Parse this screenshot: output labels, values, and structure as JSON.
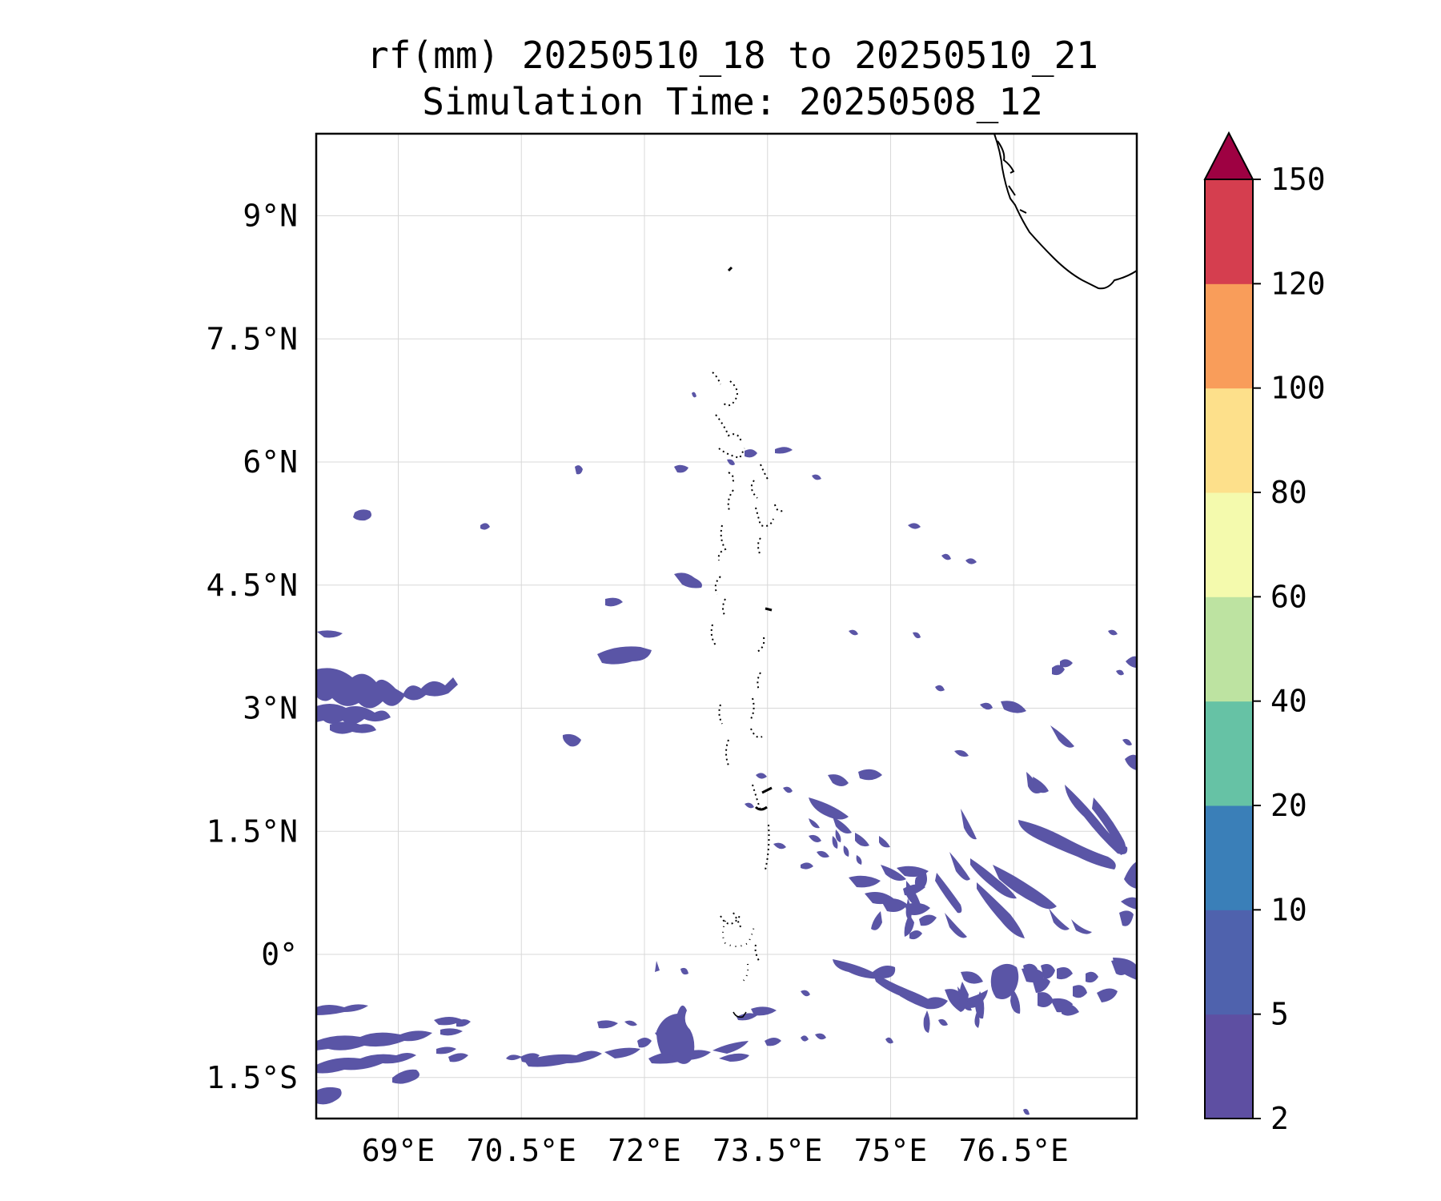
{
  "title": {
    "line1": "rf(mm) 20250510_18 to 20250510_21",
    "line2": "Simulation Time: 20250508_12"
  },
  "chart_data": {
    "type": "heatmap",
    "map_extent": {
      "lon": [
        68.0,
        78.0
      ],
      "lat": [
        -2.0,
        10.0
      ]
    },
    "x_ticks": [
      {
        "value": 69.0,
        "label": "69°E"
      },
      {
        "value": 70.5,
        "label": "70.5°E"
      },
      {
        "value": 72.0,
        "label": "72°E"
      },
      {
        "value": 73.5,
        "label": "73.5°E"
      },
      {
        "value": 75.0,
        "label": "75°E"
      },
      {
        "value": 76.5,
        "label": "76.5°E"
      }
    ],
    "y_ticks": [
      {
        "value": 9.0,
        "label": "9°N"
      },
      {
        "value": 7.5,
        "label": "7.5°N"
      },
      {
        "value": 6.0,
        "label": "6°N"
      },
      {
        "value": 4.5,
        "label": "4.5°N"
      },
      {
        "value": 3.0,
        "label": "3°N"
      },
      {
        "value": 1.5,
        "label": "1.5°N"
      },
      {
        "value": 0.0,
        "label": "0°"
      },
      {
        "value": -1.5,
        "label": "1.5°S"
      }
    ],
    "grid": true,
    "colorbar": {
      "levels": [
        "2",
        "5",
        "10",
        "20",
        "40",
        "60",
        "80",
        "100",
        "120",
        "150"
      ],
      "colors": [
        "#5e4fa2",
        "#4f62ad",
        "#3a7fb8",
        "#66c2a5",
        "#bde3a1",
        "#f4faad",
        "#fde08b",
        "#f99d5a",
        "#d53e4f"
      ],
      "extend_color": "#9e0142",
      "extend": "max"
    },
    "rain_color": "#5a55a6",
    "rain_regions": [
      "Southeast Indian Ocean near 74–78°E, 0.5°S–2.5°N: widespread streaks",
      "Western edge near 68–69.5°E, 2.5–3.5°N: band",
      "Southwest near 68–72.5°E, 0.5–2°S: band"
    ]
  }
}
